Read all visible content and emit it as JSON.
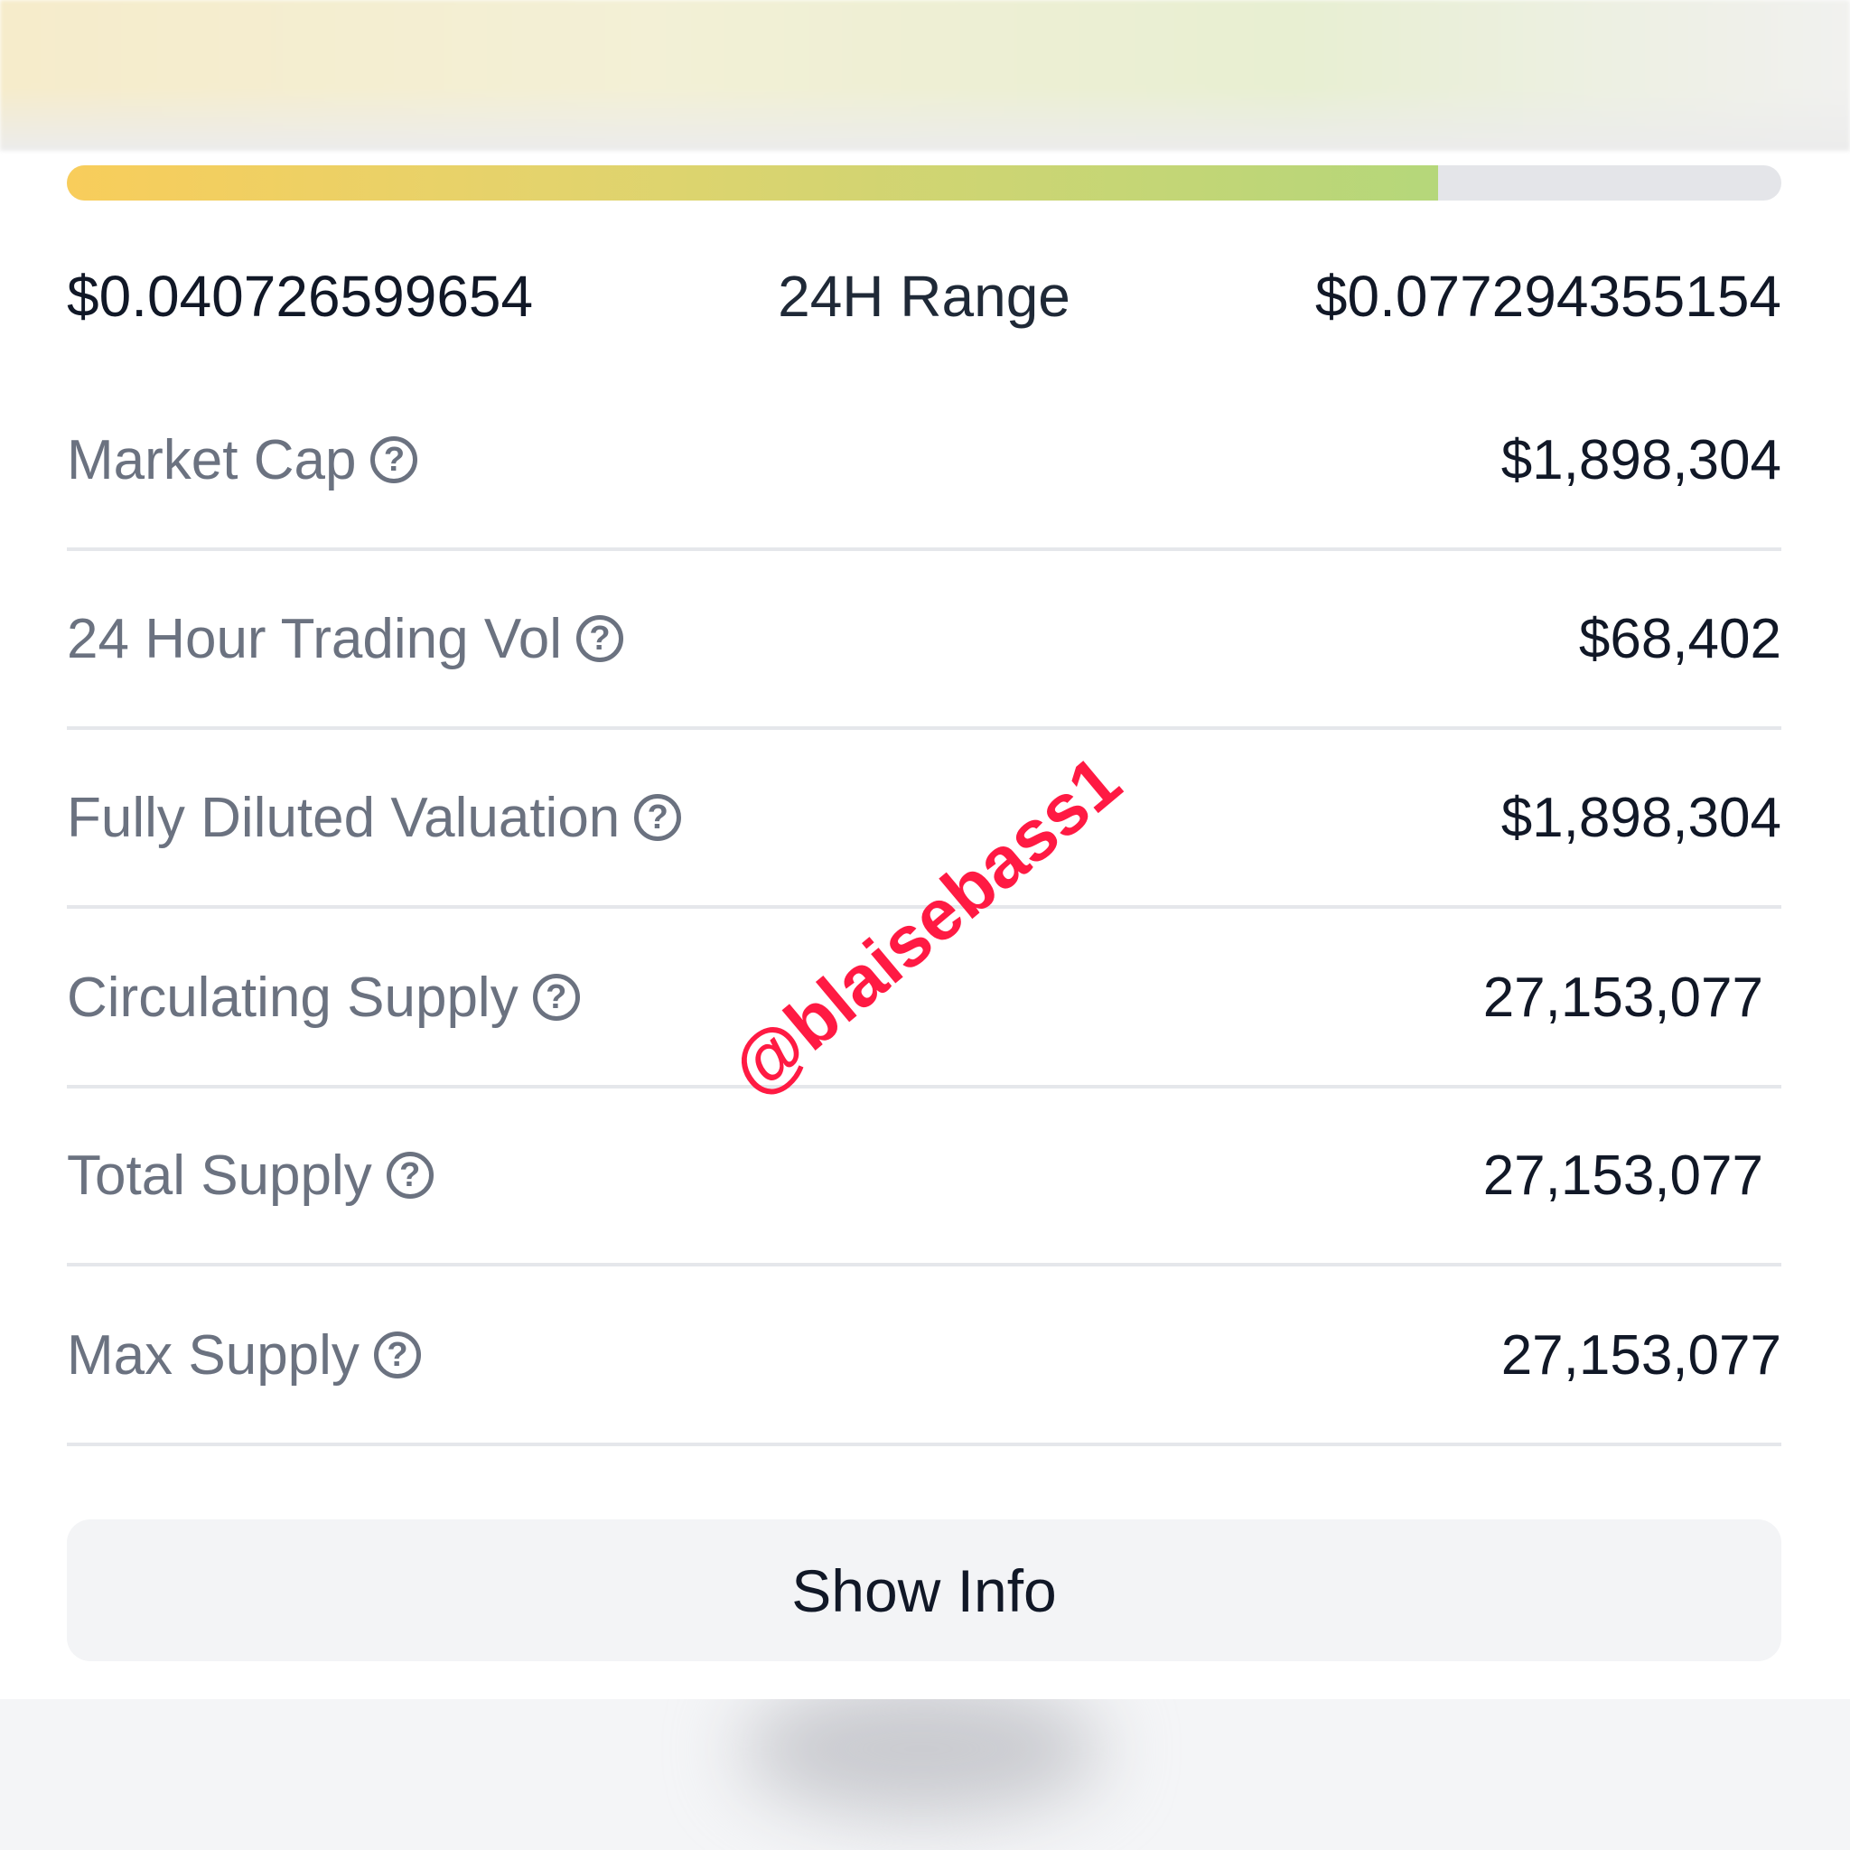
{
  "range": {
    "low": "$0.040726599654",
    "label": "24H Range",
    "high": "$0.077294355154",
    "fill_fraction": 0.8
  },
  "stats": [
    {
      "label": "Market Cap",
      "value": "$1,898,304"
    },
    {
      "label": "24 Hour Trading Vol",
      "value": "$68,402"
    },
    {
      "label": "Fully Diluted Valuation",
      "value": "$1,898,304"
    },
    {
      "label": "Circulating Supply",
      "value": "27,153,077"
    },
    {
      "label": "Total Supply",
      "value": "27,153,077"
    },
    {
      "label": "Max Supply",
      "value": "27,153,077"
    }
  ],
  "help_icon": "?",
  "show_info_label": "Show Info",
  "watermark": "@blaisebass1"
}
